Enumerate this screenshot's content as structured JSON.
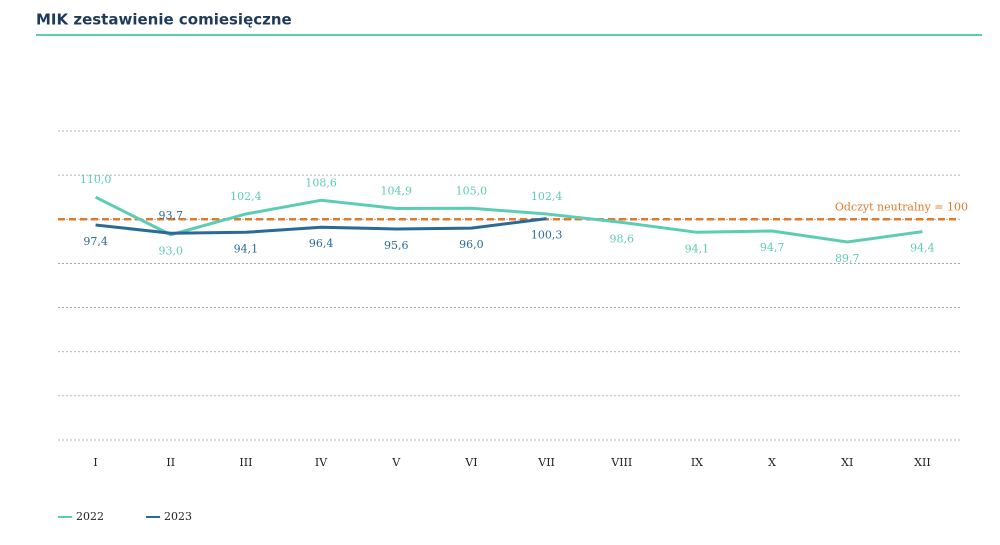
{
  "chart_data": {
    "type": "line",
    "title": "MIK zestawienie comiesięczne",
    "categories": [
      "I",
      "II",
      "III",
      "IV",
      "V",
      "VI",
      "VII",
      "VIII",
      "IX",
      "X",
      "XI",
      "XII"
    ],
    "series": [
      {
        "name": "2022",
        "color": "#5ccdb4",
        "values": [
          110.0,
          93.0,
          102.4,
          108.6,
          104.9,
          105.0,
          102.4,
          98.6,
          94.1,
          94.7,
          89.7,
          94.4
        ],
        "value_labels": [
          "110,0",
          "93,0",
          "102,4",
          "108,6",
          "104,9",
          "105,0",
          "102,4",
          "98,6",
          "94,1",
          "94,7",
          "89,7",
          "94,4"
        ]
      },
      {
        "name": "2023",
        "color": "#2a6a96",
        "values": [
          97.4,
          93.7,
          94.1,
          96.4,
          95.6,
          96.0,
          100.3,
          null,
          null,
          null,
          null,
          null
        ],
        "value_labels": [
          "97,4",
          "93,7",
          "94,1",
          "96,4",
          "95,6",
          "96,0",
          "100,3",
          null,
          null,
          null,
          null,
          null
        ]
      }
    ],
    "ylim": [
      0,
      140
    ],
    "yticks": [
      0,
      20,
      40,
      60,
      80,
      100,
      120,
      140
    ],
    "grid": true,
    "reference_line": {
      "value": 100,
      "label": "Odczyt neutralny = 100",
      "color": "#e07b2a"
    }
  }
}
